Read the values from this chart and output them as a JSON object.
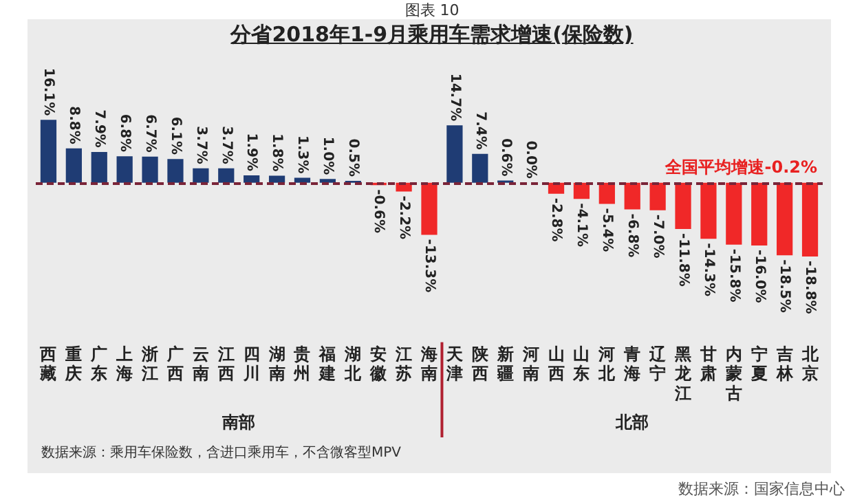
{
  "chart_data": {
    "type": "bar",
    "title": "分省2018年1-9月乘用车需求增速(保险数)",
    "categories": [
      "西藏",
      "重庆",
      "广东",
      "上海",
      "浙江",
      "广西",
      "云南",
      "江西",
      "四川",
      "湖南",
      "贵州",
      "福建",
      "湖北",
      "安徽",
      "江苏",
      "海南",
      "天津",
      "陕西",
      "新疆",
      "河南",
      "山西",
      "山东",
      "河北",
      "青海",
      "辽宁",
      "黑龙江",
      "甘肃",
      "内蒙古",
      "宁夏",
      "吉林",
      "北京"
    ],
    "values": [
      16.1,
      8.8,
      7.9,
      6.8,
      6.7,
      6.1,
      3.7,
      3.7,
      1.9,
      1.8,
      1.3,
      1.0,
      0.5,
      -0.6,
      -2.2,
      -13.3,
      14.7,
      7.4,
      0.6,
      0.0,
      -2.8,
      -4.1,
      -5.4,
      -6.8,
      -7.0,
      -11.8,
      -14.3,
      -15.8,
      -16.0,
      -18.5,
      -18.8
    ],
    "colors": [
      "#1f3c74",
      "#1f3c74",
      "#1f3c74",
      "#1f3c74",
      "#1f3c74",
      "#1f3c74",
      "#1f3c74",
      "#1f3c74",
      "#1f3c74",
      "#1f3c74",
      "#1f3c74",
      "#1f3c74",
      "#1f3c74",
      "#f02828",
      "#f02828",
      "#f02828",
      "#1f3c74",
      "#1f3c74",
      "#1f3c74",
      "#1f3c74",
      "#f02828",
      "#f02828",
      "#f02828",
      "#f02828",
      "#f02828",
      "#f02828",
      "#f02828",
      "#f02828",
      "#f02828",
      "#f02828",
      "#f02828"
    ],
    "value_labels": [
      "16.1%",
      "8.8%",
      "7.9%",
      "6.8%",
      "6.7%",
      "6.1%",
      "3.7%",
      "3.7%",
      "1.9%",
      "1.8%",
      "1.3%",
      "1.0%",
      "0.5%",
      "-0.6%",
      "-2.2%",
      "-13.3%",
      "14.7%",
      "7.4%",
      "0.6%",
      "0.0%",
      "-2.8%",
      "-4.1%",
      "-5.4%",
      "-6.8%",
      "-7.0%",
      "-11.8%",
      "-14.3%",
      "-15.8%",
      "-16.0%",
      "-18.5%",
      "-18.8%"
    ],
    "ref_lines": [
      {
        "axis": "y",
        "value": -0.2,
        "label": "全国平均增速-0.2%",
        "color": "#7a2438",
        "line_style": "dashed"
      }
    ],
    "annotations": [
      "南部",
      "北部",
      "数据来源：乘用车保险数，含进口乘用车，不含微客型MPV",
      "图表 10",
      "数据来源：国家信息中心"
    ],
    "grid": false,
    "legend": false
  }
}
